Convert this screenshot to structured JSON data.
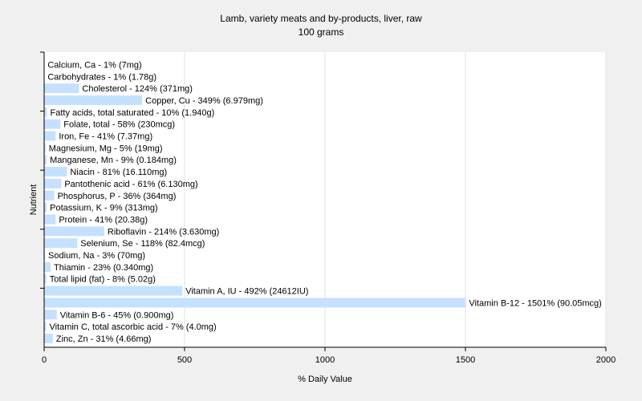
{
  "chart_data": {
    "type": "bar",
    "orientation": "horizontal",
    "title": "Lamb, variety meats and by-products, liver, raw",
    "subtitle": "100 grams",
    "xlabel": "% Daily Value",
    "ylabel": "Nutrient",
    "xlim": [
      0,
      2000
    ],
    "xticks": [
      0,
      500,
      1000,
      1500,
      2000
    ],
    "grid": true,
    "bar_color": "#c6e0ff",
    "background_color": "#f0f0f0",
    "plot_background_color": "#ffffff",
    "categories": [
      "Calcium, Ca",
      "Carbohydrates",
      "Cholesterol",
      "Copper, Cu",
      "Fatty acids, total saturated",
      "Folate, total",
      "Iron, Fe",
      "Magnesium, Mg",
      "Manganese, Mn",
      "Niacin",
      "Pantothenic acid",
      "Phosphorus, P",
      "Potassium, K",
      "Protein",
      "Riboflavin",
      "Selenium, Se",
      "Sodium, Na",
      "Thiamin",
      "Total lipid (fat)",
      "Vitamin A, IU",
      "Vitamin B-12",
      "Vitamin B-6",
      "Vitamin C, total ascorbic acid",
      "Zinc, Zn"
    ],
    "values": [
      1,
      1,
      124,
      349,
      10,
      58,
      41,
      5,
      9,
      81,
      61,
      36,
      9,
      41,
      214,
      118,
      3,
      23,
      8,
      492,
      1501,
      45,
      7,
      31
    ],
    "labels": [
      "Calcium, Ca - 1% (7mg)",
      "Carbohydrates - 1% (1.78g)",
      "Cholesterol - 124% (371mg)",
      "Copper, Cu - 349% (6.979mg)",
      "Fatty acids, total saturated - 10% (1.940g)",
      "Folate, total - 58% (230mcg)",
      "Iron, Fe - 41% (7.37mg)",
      "Magnesium, Mg - 5% (19mg)",
      "Manganese, Mn - 9% (0.184mg)",
      "Niacin - 81% (16.110mg)",
      "Pantothenic acid - 61% (6.130mg)",
      "Phosphorus, P - 36% (364mg)",
      "Potassium, K - 9% (313mg)",
      "Protein - 41% (20.38g)",
      "Riboflavin - 214% (3.630mg)",
      "Selenium, Se - 118% (82.4mcg)",
      "Sodium, Na - 3% (70mg)",
      "Thiamin - 23% (0.340mg)",
      "Total lipid (fat) - 8% (5.02g)",
      "Vitamin A, IU - 492% (24612IU)",
      "Vitamin B-12 - 1501% (90.05mcg)",
      "Vitamin B-6 - 45% (0.900mg)",
      "Vitamin C, total ascorbic acid - 7% (4.0mg)",
      "Zinc, Zn - 31% (4.66mg)"
    ]
  }
}
